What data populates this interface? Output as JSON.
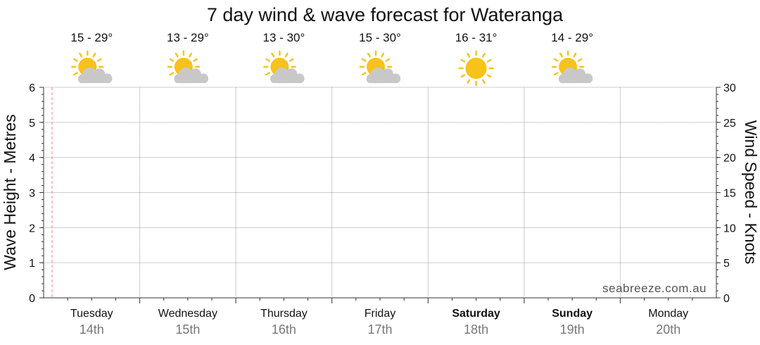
{
  "chart_data": {
    "type": "line",
    "title": "7 day wind & wave forecast for Wateranga",
    "y_left": {
      "label": "Wave Height - Metres",
      "range": [
        0,
        6
      ],
      "ticks": [
        "0",
        "1",
        "2",
        "3",
        "4",
        "5",
        "6"
      ]
    },
    "y_right": {
      "label": "Wind Speed - Knots",
      "range": [
        0,
        30
      ],
      "ticks": [
        "0",
        "5",
        "10",
        "15",
        "20",
        "25",
        "30"
      ]
    },
    "grid": true,
    "days": [
      {
        "name": "Tuesday",
        "date": "14th",
        "temp": "15 - 29°",
        "icon": "sun-cloud-icon",
        "bold": false
      },
      {
        "name": "Wednesday",
        "date": "15th",
        "temp": "13 - 29°",
        "icon": "sun-cloud-icon",
        "bold": false
      },
      {
        "name": "Thursday",
        "date": "16th",
        "temp": "13 - 30°",
        "icon": "sun-cloud-icon",
        "bold": false
      },
      {
        "name": "Friday",
        "date": "17th",
        "temp": "15 - 30°",
        "icon": "sun-cloud-icon",
        "bold": false
      },
      {
        "name": "Saturday",
        "date": "18th",
        "temp": "16 - 31°",
        "icon": "sun-icon",
        "bold": true
      },
      {
        "name": "Sunday",
        "date": "19th",
        "temp": "14 - 29°",
        "icon": "sun-cloud-icon",
        "bold": true
      },
      {
        "name": "Monday",
        "date": "20th",
        "temp": "",
        "icon": "",
        "bold": false
      }
    ],
    "series": [],
    "current_time_marker": true,
    "watermark": "seabreeze.com.au"
  },
  "colors": {
    "grid": "#9a9a9a",
    "axis": "#333333",
    "now_marker": "#f08080",
    "sun": "#f7c21b",
    "sun_ray": "#f7c21b",
    "cloud": "#c8c8c8",
    "date_text": "#777777"
  }
}
